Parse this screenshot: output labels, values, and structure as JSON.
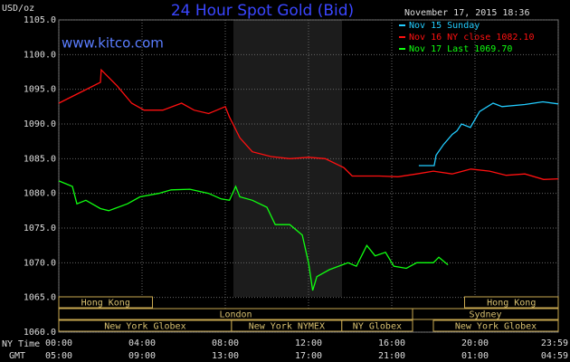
{
  "chart_data": {
    "type": "line",
    "title": "24 Hour Spot Gold (Bid)",
    "y_label": "USD/oz",
    "site": "www.kitco.com",
    "timestamp": "November 17, 2015 18:36",
    "x_label": "NY Time",
    "x2_label": "GMT",
    "xlim": [
      0,
      24
    ],
    "ylim": [
      1060,
      1105
    ],
    "grid": true,
    "xticks": [
      {
        "value": 0,
        "label": "00:00"
      },
      {
        "value": 4,
        "label": "04:00"
      },
      {
        "value": 8,
        "label": "08:00"
      },
      {
        "value": 12,
        "label": "12:00"
      },
      {
        "value": 16,
        "label": "16:00"
      },
      {
        "value": 20,
        "label": "20:00"
      },
      {
        "value": 24,
        "label": "23:59"
      }
    ],
    "x2ticks": [
      {
        "value": 0,
        "label": "05:00"
      },
      {
        "value": 4,
        "label": "09:00"
      },
      {
        "value": 8,
        "label": "13:00"
      },
      {
        "value": 12,
        "label": "17:00"
      },
      {
        "value": 16,
        "label": "21:00"
      },
      {
        "value": 20,
        "label": "01:00"
      },
      {
        "value": 24,
        "label": "04:59"
      }
    ],
    "yticks": [
      {
        "value": 1105,
        "label": "1105.0"
      },
      {
        "value": 1100,
        "label": "1100.0"
      },
      {
        "value": 1095,
        "label": "1095.0"
      },
      {
        "value": 1090,
        "label": "1090.0"
      },
      {
        "value": 1085,
        "label": "1085.0"
      },
      {
        "value": 1080,
        "label": "1080.0"
      },
      {
        "value": 1075,
        "label": "1075.0"
      },
      {
        "value": 1070,
        "label": "1070.0"
      },
      {
        "value": 1065,
        "label": "1065.0"
      },
      {
        "value": 1060,
        "label": "1060.0"
      }
    ],
    "sessions": [
      [
        {
          "label": "Hong Kong",
          "start": 0,
          "end": 4.5
        },
        {
          "label": "Hong Kong",
          "start": 19.5,
          "end": 24
        }
      ],
      [
        {
          "label": "London",
          "start": 0,
          "end": 17
        },
        {
          "label": "Sydney",
          "start": 17,
          "end": 24
        }
      ],
      [
        {
          "label": "New York Globex",
          "start": 0,
          "end": 8.3
        },
        {
          "label": "New York NYMEX",
          "start": 8.3,
          "end": 13.6
        },
        {
          "label": "NY Globex",
          "start": 13.6,
          "end": 17
        },
        {
          "label": "New York Globex",
          "start": 18,
          "end": 24
        }
      ]
    ],
    "series": [
      {
        "name": "Nov 15 Sunday",
        "color": "#22ccff",
        "x": [
          17.3,
          18.04,
          18.13,
          18.48,
          18.91,
          19.13,
          19.35,
          19.78,
          20.22,
          20.87,
          21.3,
          22.39,
          23.26,
          24
        ],
        "values": [
          1084,
          1084,
          1085.5,
          1087,
          1088.5,
          1089,
          1090,
          1089.5,
          1091.8,
          1093,
          1092.5,
          1092.8,
          1093.2,
          1092.9
        ]
      },
      {
        "name": "Nov 16 NY close 1082.10",
        "color": "#ff1010",
        "x": [
          0,
          1,
          2,
          2.04,
          2.8,
          3.5,
          4.1,
          5,
          5.9,
          6.5,
          7.2,
          8,
          8.2,
          8.7,
          9.3,
          10.2,
          11.1,
          12,
          12.8,
          13.7,
          14.1,
          15.4,
          16.3,
          17.2,
          18,
          18.9,
          19.8,
          20.7,
          21.5,
          22.4,
          23.3,
          24
        ],
        "values": [
          1093,
          1094.5,
          1096,
          1097.8,
          1095.5,
          1093,
          1092,
          1092,
          1093,
          1092,
          1091.5,
          1092.5,
          1091,
          1088,
          1086,
          1085.3,
          1085,
          1085.2,
          1085,
          1083.7,
          1082.5,
          1082.5,
          1082.4,
          1082.8,
          1083.2,
          1082.8,
          1083.5,
          1083.2,
          1082.6,
          1082.8,
          1082,
          1082.1
        ]
      },
      {
        "name": "Nov 17 Last 1069.70",
        "color": "#10ff10",
        "x": [
          0,
          0.65,
          0.87,
          1.3,
          2,
          2.4,
          3.3,
          3.9,
          4.8,
          5.4,
          6.3,
          7.2,
          7.8,
          8.2,
          8.5,
          8.7,
          9.3,
          10,
          10.4,
          11.1,
          11.7,
          12,
          12.2,
          12.4,
          13,
          13.9,
          14.3,
          14.8,
          15.2,
          15.7,
          16.1,
          16.7,
          17.2,
          18,
          18.26,
          18.7
        ],
        "values": [
          1081.8,
          1081,
          1078.5,
          1079,
          1077.8,
          1077.5,
          1078.5,
          1079.5,
          1080,
          1080.5,
          1080.6,
          1080,
          1079.2,
          1079,
          1081,
          1079.5,
          1079,
          1078,
          1075.5,
          1075.5,
          1074,
          1070,
          1066,
          1068,
          1069,
          1070,
          1069.5,
          1072.5,
          1071,
          1071.5,
          1069.5,
          1069.2,
          1070,
          1070,
          1070.8,
          1069.7
        ]
      }
    ]
  }
}
